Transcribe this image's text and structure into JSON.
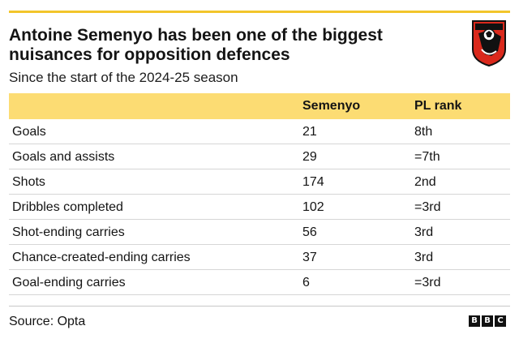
{
  "header": {
    "title": "Antoine Semenyo has been one of the biggest nuisances for opposition defences",
    "subtitle": "Since the start of the 2024-25 season",
    "crest_icon": "afc-bournemouth-crest-icon"
  },
  "table": {
    "columns": [
      "",
      "Semenyo",
      "PL rank"
    ],
    "rows": [
      {
        "label": "Goals",
        "value": "21",
        "rank": "8th"
      },
      {
        "label": "Goals and assists",
        "value": "29",
        "rank": "=7th"
      },
      {
        "label": "Shots",
        "value": "174",
        "rank": "2nd"
      },
      {
        "label": "Dribbles completed",
        "value": "102",
        "rank": "=3rd"
      },
      {
        "label": "Shot-ending carries",
        "value": "56",
        "rank": "3rd"
      },
      {
        "label": "Chance-created-ending carries",
        "value": "37",
        "rank": "3rd"
      },
      {
        "label": "Goal-ending carries",
        "value": "6",
        "rank": "=3rd"
      }
    ]
  },
  "footer": {
    "source": "Source: Opta",
    "logo_letters": [
      "B",
      "B",
      "C"
    ]
  },
  "colors": {
    "accent_rule": "#f2c52b",
    "header_fill": "#fcdc73",
    "crest_red": "#da291c",
    "crest_black": "#111111"
  }
}
